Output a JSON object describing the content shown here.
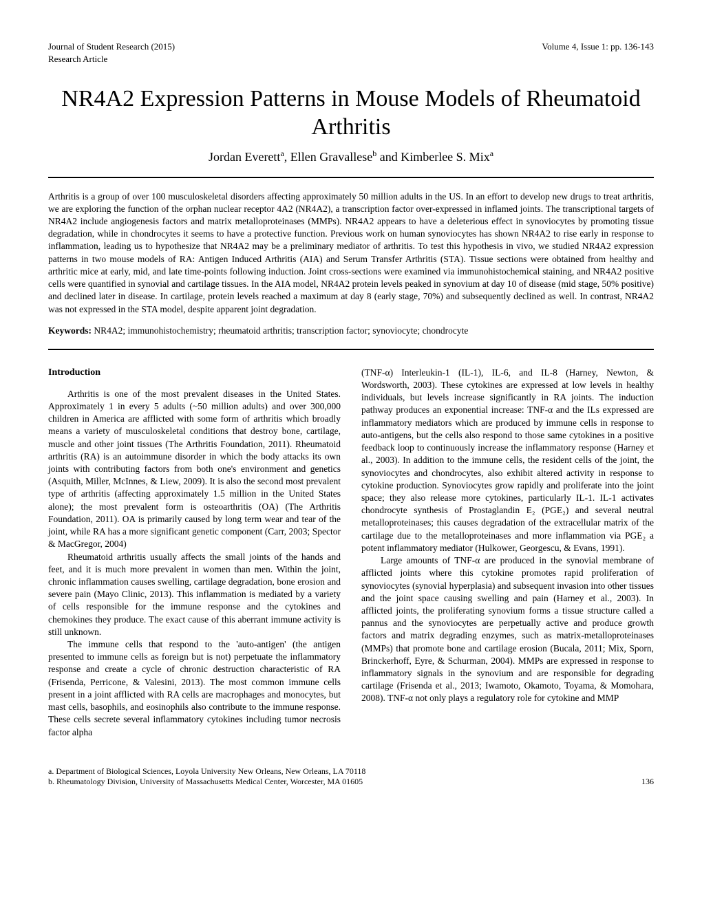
{
  "header": {
    "journal": "Journal of Student Research (2015)",
    "volume": "Volume 4, Issue 1: pp. 136-143",
    "type": "Research Article"
  },
  "title": "NR4A2 Expression Patterns in Mouse Models of Rheumatoid Arthritis",
  "authors_html": "Jordan Everett<sup>a</sup>, Ellen Gravallese<sup>b</sup> and Kimberlee S. Mix<sup>a</sup>",
  "abstract": "Arthritis is a group of over 100 musculoskeletal disorders affecting approximately 50 million adults in the US. In an effort to develop new drugs to treat arthritis, we are exploring the function of the orphan nuclear receptor 4A2 (NR4A2), a transcription factor over-expressed in inflamed joints. The transcriptional targets of NR4A2 include angiogenesis factors and matrix metalloproteinases (MMPs). NR4A2 appears to have a deleterious effect in synoviocytes by promoting tissue degradation, while in chondrocytes it seems to have a protective function. Previous work on human synoviocytes has shown NR4A2 to rise early in response to inflammation, leading us to hypothesize that NR4A2 may be a preliminary mediator of arthritis. To test this hypothesis in vivo, we studied NR4A2 expression patterns in two mouse models of RA: Antigen Induced Arthritis (AIA) and Serum Transfer Arthritis (STA). Tissue sections were obtained from healthy and arthritic mice at early, mid, and late time-points following induction. Joint cross-sections were examined via immunohistochemical staining, and NR4A2 positive cells were quantified in synovial and cartilage tissues. In the AIA model, NR4A2 protein levels peaked in synovium at day 10 of disease (mid stage, 50% positive) and declined later in disease. In cartilage, protein levels reached a maximum at day 8 (early stage, 70%) and subsequently declined as well. In contrast, NR4A2 was not expressed in the STA model, despite apparent joint degradation.",
  "keywords_label": "Keywords:",
  "keywords": "NR4A2; immunohistochemistry; rheumatoid arthritis; transcription factor; synoviocyte; chondrocyte",
  "intro_heading": "Introduction",
  "left_col": {
    "p1": "Arthritis is one of the most prevalent diseases in the United States. Approximately 1 in every 5 adults (~50 million adults) and over 300,000 children in America are afflicted with some form of arthritis which broadly means a variety of musculoskeletal conditions that destroy bone, cartilage, muscle and other joint tissues (The Arthritis Foundation, 2011). Rheumatoid arthritis (RA) is an autoimmune disorder in which the body attacks its own joints with contributing factors from both one's environment and genetics (Asquith, Miller, McInnes, & Liew, 2009). It is also the second most prevalent type of arthritis (affecting approximately 1.5 million in the United States alone); the most prevalent form is osteoarthritis (OA) (The Arthritis Foundation, 2011). OA is primarily caused by long term wear and tear of the joint, while RA has a more significant genetic component (Carr, 2003; Spector & MacGregor, 2004)",
    "p2": "Rheumatoid arthritis usually affects the small joints of the hands and feet, and it is much more prevalent in women than men. Within the joint, chronic inflammation causes swelling, cartilage degradation, bone erosion and severe pain (Mayo Clinic, 2013). This inflammation is mediated by a variety of cells responsible for the immune response and the cytokines and chemokines they produce. The exact cause of this aberrant immune activity is still unknown.",
    "p3": "The immune cells that respond to the 'auto-antigen' (the antigen presented to immune cells as foreign but is not) perpetuate the inflammatory response and create a cycle of chronic destruction characteristic of RA (Frisenda, Perricone, & Valesini, 2013). The most common immune cells present in a joint afflicted with RA cells are macrophages and monocytes, but mast cells, basophils, and eosinophils also contribute to the immune response. These cells secrete several inflammatory cytokines including tumor necrosis factor alpha"
  },
  "right_col": {
    "p1": "(TNF-α) Interleukin-1 (IL-1), IL-6, and IL-8 (Harney, Newton, & Wordsworth, 2003). These cytokines are expressed at low levels in healthy individuals, but levels increase significantly in RA joints. The induction pathway produces an exponential increase: TNF-α and the ILs expressed are inflammatory mediators which are produced by immune cells in response to auto-antigens, but the cells also respond to those same cytokines in a positive feedback loop to continuously increase the inflammatory response (Harney et al., 2003). In addition to the immune cells, the resident cells of the joint, the synoviocytes and chondrocytes, also exhibit altered activity in response to cytokine production. Synoviocytes grow rapidly and proliferate into the joint space; they also release more cytokines, particularly IL-1. IL-1 activates chondrocyte synthesis of Prostaglandin E₂ (PGE₂) and several neutral metalloproteinases; this causes degradation of the extracellular matrix of the cartilage due to the metalloproteinases and more inflammation via PGE₂ a potent inflammatory mediator (Hulkower, Georgescu, & Evans, 1991).",
    "p2": "Large amounts of TNF-α are produced in the synovial membrane of afflicted joints where this cytokine promotes rapid proliferation of synoviocytes (synovial hyperplasia) and subsequent invasion into other tissues and the joint space causing swelling and pain (Harney et al., 2003). In afflicted joints, the proliferating synovium forms a tissue structure called a pannus and the synoviocytes are perpetually active and produce growth factors and matrix degrading enzymes, such as matrix-metalloproteinases (MMPs) that promote bone and cartilage erosion (Bucala, 2011; Mix, Sporn, Brinckerhoff, Eyre, & Schurman, 2004). MMPs are expressed in response to inflammatory signals in the synovium and are responsible for degrading cartilage (Frisenda et al., 2013; Iwamoto, Okamoto, Toyama, & Momohara, 2008). TNF-α not only plays a regulatory role for cytokine and MMP"
  },
  "footer": {
    "a": "a. Department of Biological Sciences, Loyola University New Orleans, New Orleans, LA 70118",
    "b": "b. Rheumatology Division, University of Massachusetts Medical Center, Worcester, MA 01605",
    "page": "136"
  }
}
